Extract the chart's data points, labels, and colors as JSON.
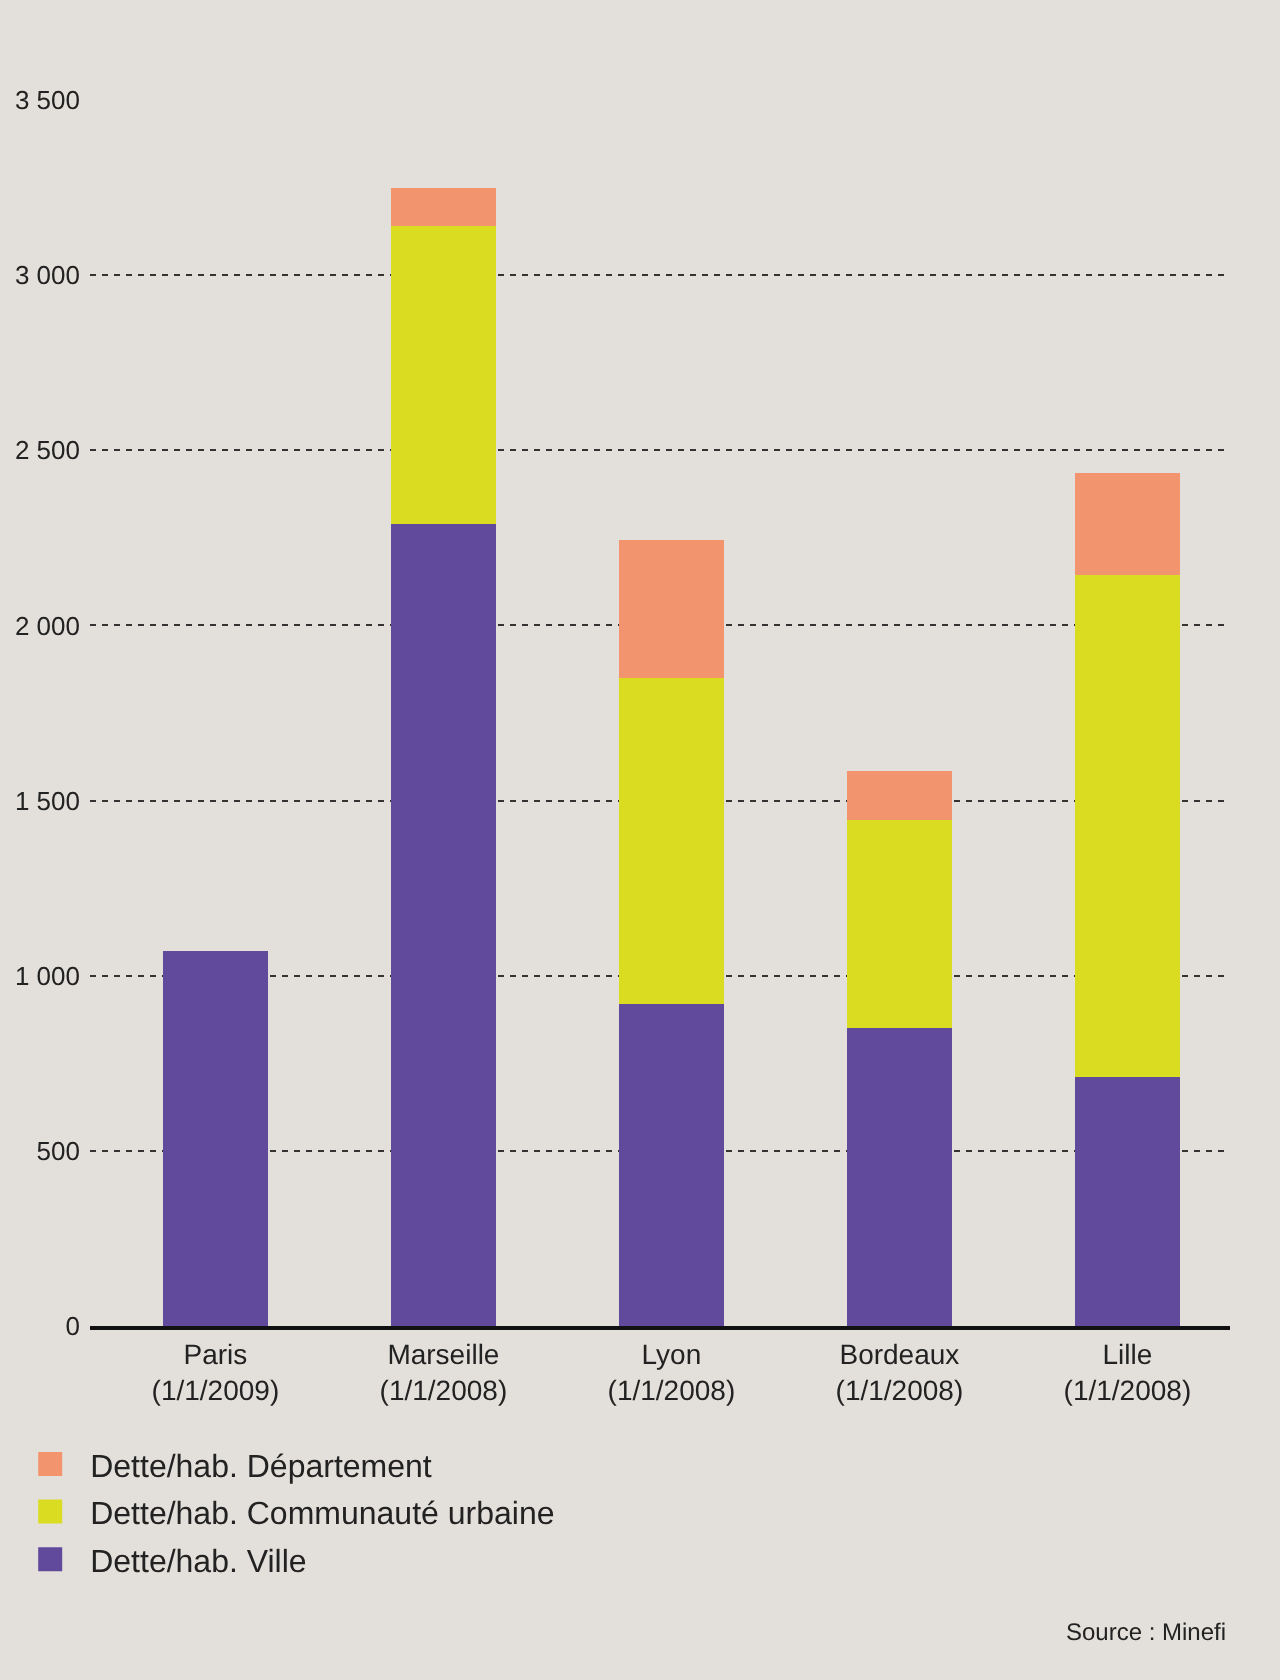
{
  "chart_data": {
    "type": "bar",
    "stacked": true,
    "categories": [
      "Paris\n(1/1/2009)",
      "Marseille\n(1/1/2008)",
      "Lyon\n(1/1/2008)",
      "Bordeaux\n(1/1/2008)",
      "Lille\n(1/1/2008)"
    ],
    "series": [
      {
        "name": "Dette/hab. Ville",
        "color": "#61499c",
        "values": [
          1070,
          2290,
          920,
          850,
          710
        ]
      },
      {
        "name": "Dette/hab. Communauté urbaine",
        "color": "#d9dc20",
        "values": [
          null,
          850,
          930,
          595,
          1435
        ]
      },
      {
        "name": "Dette/hab. Département",
        "color": "#f2956e",
        "values": [
          null,
          110,
          395,
          140,
          290
        ]
      }
    ],
    "ylim": [
      0,
      3500
    ],
    "yticks": [
      0,
      500,
      {
        "value": 1000,
        "label": "1 000"
      },
      {
        "value": 1500,
        "label": "1 500"
      },
      {
        "value": 2000,
        "label": "2 000"
      },
      {
        "value": 2500,
        "label": "2 500"
      },
      {
        "value": 3000,
        "label": "3 000"
      },
      {
        "value": 3500,
        "label": "3 500"
      }
    ],
    "grid": "y",
    "legend": "bottom",
    "annotations": [
      "Source : Minefi"
    ]
  }
}
